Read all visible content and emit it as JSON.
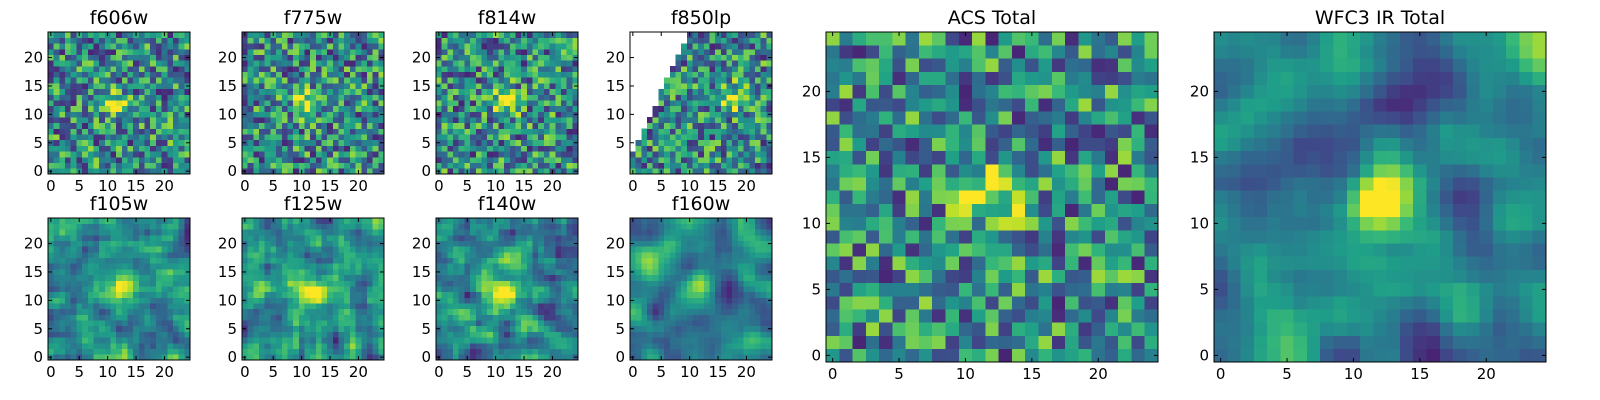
{
  "chart_data": [
    {
      "type": "heatmap",
      "title": "f606w",
      "x_ticks": [
        0,
        5,
        10,
        15,
        20
      ],
      "y_ticks": [
        0,
        5,
        10,
        15,
        20
      ],
      "xlim": [
        -0.5,
        24.5
      ],
      "ylim": [
        -0.5,
        24.5
      ],
      "grid_size": 25,
      "colormap": "viridis",
      "source_blob": [
        11,
        12
      ],
      "texture": "noisy",
      "masked_region": "none",
      "seed": 11
    },
    {
      "type": "heatmap",
      "title": "f775w",
      "x_ticks": [
        0,
        5,
        10,
        15,
        20
      ],
      "y_ticks": [
        0,
        5,
        10,
        15,
        20
      ],
      "xlim": [
        -0.5,
        24.5
      ],
      "ylim": [
        -0.5,
        24.5
      ],
      "grid_size": 25,
      "colormap": "viridis",
      "source_blob": [
        11,
        12
      ],
      "texture": "noisy",
      "masked_region": "none",
      "seed": 23
    },
    {
      "type": "heatmap",
      "title": "f814w",
      "x_ticks": [
        0,
        5,
        10,
        15,
        20
      ],
      "y_ticks": [
        0,
        5,
        10,
        15,
        20
      ],
      "xlim": [
        -0.5,
        24.5
      ],
      "ylim": [
        -0.5,
        24.5
      ],
      "grid_size": 25,
      "colormap": "viridis",
      "source_blob": [
        12,
        12
      ],
      "texture": "noisy",
      "masked_region": "none",
      "seed": 37
    },
    {
      "type": "heatmap",
      "title": "f850lp",
      "x_ticks": [
        0,
        5,
        10,
        15,
        20
      ],
      "y_ticks": [
        5,
        10,
        15,
        20
      ],
      "xlim": [
        -0.5,
        24.5
      ],
      "ylim": [
        -0.5,
        24.5
      ],
      "grid_size": 25,
      "colormap": "viridis",
      "source_blob": [
        17,
        13
      ],
      "texture": "noisy",
      "masked_region": "upper-left",
      "seed": 41
    },
    {
      "type": "heatmap",
      "title": "f105w",
      "x_ticks": [
        0,
        5,
        10,
        15,
        20
      ],
      "y_ticks": [
        0,
        5,
        10,
        15,
        20
      ],
      "xlim": [
        -0.5,
        24.5
      ],
      "ylim": [
        -0.5,
        24.5
      ],
      "grid_size": 25,
      "colormap": "viridis",
      "source_blob": [
        13,
        12
      ],
      "texture": "blotchy",
      "masked_region": "none",
      "seed": 53
    },
    {
      "type": "heatmap",
      "title": "f125w",
      "x_ticks": [
        0,
        5,
        10,
        15,
        20
      ],
      "y_ticks": [
        0,
        5,
        10,
        15,
        20
      ],
      "xlim": [
        -0.5,
        24.5
      ],
      "ylim": [
        -0.5,
        24.5
      ],
      "grid_size": 25,
      "colormap": "viridis",
      "source_blob": [
        12,
        12
      ],
      "texture": "blotchy",
      "masked_region": "none",
      "seed": 67
    },
    {
      "type": "heatmap",
      "title": "f140w",
      "x_ticks": [
        0,
        5,
        10,
        15,
        20
      ],
      "y_ticks": [
        0,
        5,
        10,
        15,
        20
      ],
      "xlim": [
        -0.5,
        24.5
      ],
      "ylim": [
        -0.5,
        24.5
      ],
      "grid_size": 25,
      "colormap": "viridis",
      "source_blob": [
        12,
        12
      ],
      "texture": "blotchy",
      "masked_region": "none",
      "seed": 71
    },
    {
      "type": "heatmap",
      "title": "f160w",
      "x_ticks": [
        0,
        5,
        10,
        15,
        20
      ],
      "y_ticks": [
        0,
        5,
        10,
        15,
        20
      ],
      "xlim": [
        -0.5,
        24.5
      ],
      "ylim": [
        -0.5,
        24.5
      ],
      "grid_size": 25,
      "colormap": "viridis",
      "source_blob": [
        12,
        12
      ],
      "texture": "smooth",
      "masked_region": "none",
      "seed": 83
    },
    {
      "type": "heatmap",
      "title": "ACS Total",
      "x_ticks": [
        0,
        5,
        10,
        15,
        20
      ],
      "y_ticks": [
        0,
        5,
        10,
        15,
        20
      ],
      "xlim": [
        -0.5,
        24.5
      ],
      "ylim": [
        -0.5,
        24.5
      ],
      "grid_size": 25,
      "colormap": "viridis",
      "source_blob": [
        12,
        12
      ],
      "texture": "noisy",
      "masked_region": "none",
      "seed": 97
    },
    {
      "type": "heatmap",
      "title": "WFC3 IR Total",
      "x_ticks": [
        0,
        5,
        10,
        15,
        20
      ],
      "y_ticks": [
        0,
        5,
        10,
        15,
        20
      ],
      "xlim": [
        -0.5,
        24.5
      ],
      "ylim": [
        -0.5,
        24.5
      ],
      "grid_size": 25,
      "colormap": "viridis",
      "source_blob": [
        12,
        12
      ],
      "texture": "smooth",
      "masked_region": "none",
      "seed": 101
    }
  ]
}
